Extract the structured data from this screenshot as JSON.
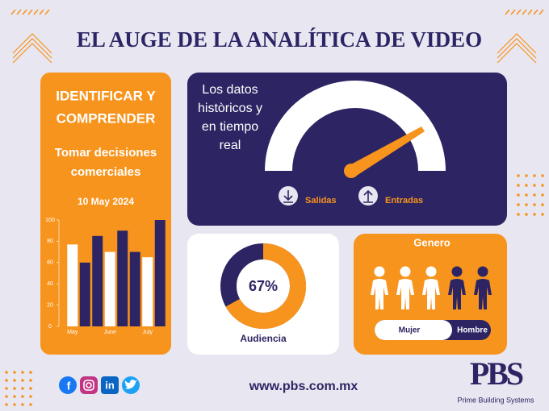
{
  "header": {
    "title": "EL AUGE DE LA ANALÍTICA DE VIDEO"
  },
  "left_panel": {
    "heading": [
      "IDENTIFICAR Y",
      "COMPRENDER"
    ],
    "subheading": [
      "Tomar decisiones",
      "comerciales"
    ],
    "date": "10 May 2024",
    "chart_data": {
      "type": "bar",
      "categories": [
        "May",
        null,
        null,
        "June",
        null,
        null,
        "July",
        null
      ],
      "values": [
        77,
        60,
        85,
        70,
        90,
        70,
        65,
        100
      ],
      "colors": [
        "#ffffff",
        "#2d2563",
        "#2d2563",
        "#ffffff",
        "#2d2563",
        "#2d2563",
        "#ffffff",
        "#2d2563"
      ],
      "ylim": [
        0,
        100
      ],
      "yticks": [
        0,
        20,
        40,
        60,
        80,
        100
      ]
    }
  },
  "gauge_panel": {
    "text": [
      "Los datos",
      "històricos y",
      "en tiempo",
      "real"
    ],
    "legend": [
      "Salidas",
      "Entradas"
    ]
  },
  "donut_panel": {
    "value": 67,
    "label": "67%",
    "caption": "Audiencia"
  },
  "gender_panel": {
    "title": "Genero",
    "toggle": [
      "Mujer",
      "Hombre"
    ]
  },
  "footer": {
    "social": [
      "f",
      "in"
    ],
    "url": "www.pbs.com.mx",
    "logo": "PBS",
    "company": "Prime Building Systems"
  }
}
